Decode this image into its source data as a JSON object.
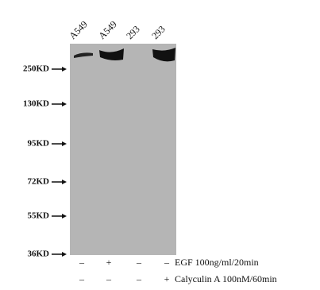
{
  "lanes": [
    "A549",
    "A549",
    "293",
    "293"
  ],
  "markers": [
    "250KD",
    "130KD",
    "95KD",
    "72KD",
    "55KD",
    "36KD"
  ],
  "treatments": [
    {
      "signs": [
        "–",
        "+",
        "–",
        "–"
      ],
      "label": "EGF 100ng/ml/20min"
    },
    {
      "signs": [
        "–",
        "–",
        "–",
        "+"
      ],
      "label": "Calyculin A 100nM/60min"
    }
  ]
}
